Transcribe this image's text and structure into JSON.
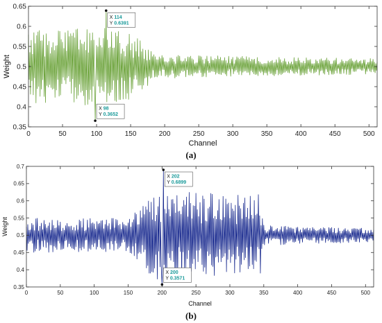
{
  "chart_data": [
    {
      "type": "line",
      "caption": "(a)",
      "xlabel": "Channel",
      "ylabel": "Weight",
      "xlim": [
        0,
        512
      ],
      "ylim": [
        0.35,
        0.65
      ],
      "xticks": [
        "0",
        "50",
        "100",
        "150",
        "200",
        "250",
        "300",
        "350",
        "400",
        "450",
        "500"
      ],
      "yticks": [
        "0.35",
        "0.4",
        "0.45",
        "0.5",
        "0.55",
        "0.6",
        "0.65"
      ],
      "grid": false,
      "color": "#6ca33b",
      "series": [
        {
          "name": "",
          "envelope": [
            {
              "x": 0,
              "amp": 0.09
            },
            {
              "x": 100,
              "amp": 0.1
            },
            {
              "x": 160,
              "amp": 0.08
            },
            {
              "x": 185,
              "amp": 0.03
            },
            {
              "x": 512,
              "amp": 0.02
            }
          ],
          "center": 0.5
        }
      ],
      "datatips": [
        {
          "x": 114,
          "y": 0.6391,
          "x_label": "X",
          "x_value": "114",
          "y_label": "Y",
          "y_value": "0.6391",
          "position": "below-right"
        },
        {
          "x": 98,
          "y": 0.3652,
          "x_label": "X",
          "x_value": "98",
          "y_label": "Y",
          "y_value": "0.3652",
          "position": "above-right"
        }
      ]
    },
    {
      "type": "line",
      "caption": "(b)",
      "xlabel": "Channel",
      "ylabel": "Weight",
      "xlim": [
        0,
        512
      ],
      "ylim": [
        0.35,
        0.7
      ],
      "xticks": [
        "0",
        "50",
        "100",
        "150",
        "200",
        "250",
        "300",
        "350",
        "400",
        "450",
        "500"
      ],
      "yticks": [
        "0.35",
        "0.4",
        "0.45",
        "0.5",
        "0.55",
        "0.6",
        "0.65",
        "0.7"
      ],
      "grid": false,
      "color": "#1a2b8f",
      "series": [
        {
          "name": "",
          "envelope": [
            {
              "x": 0,
              "amp": 0.05
            },
            {
              "x": 150,
              "amp": 0.05
            },
            {
              "x": 190,
              "amp": 0.13
            },
            {
              "x": 300,
              "amp": 0.12
            },
            {
              "x": 345,
              "amp": 0.12
            },
            {
              "x": 350,
              "amp": 0.03
            },
            {
              "x": 512,
              "amp": 0.02
            }
          ],
          "center": 0.5
        }
      ],
      "datatips": [
        {
          "x": 202,
          "y": 0.6899,
          "x_label": "X",
          "x_value": "202",
          "y_label": "Y",
          "y_value": "0.6899",
          "position": "below-right"
        },
        {
          "x": 200,
          "y": 0.3571,
          "x_label": "X",
          "x_value": "200",
          "y_label": "Y",
          "y_value": "0.3571",
          "position": "above-right"
        }
      ]
    }
  ]
}
